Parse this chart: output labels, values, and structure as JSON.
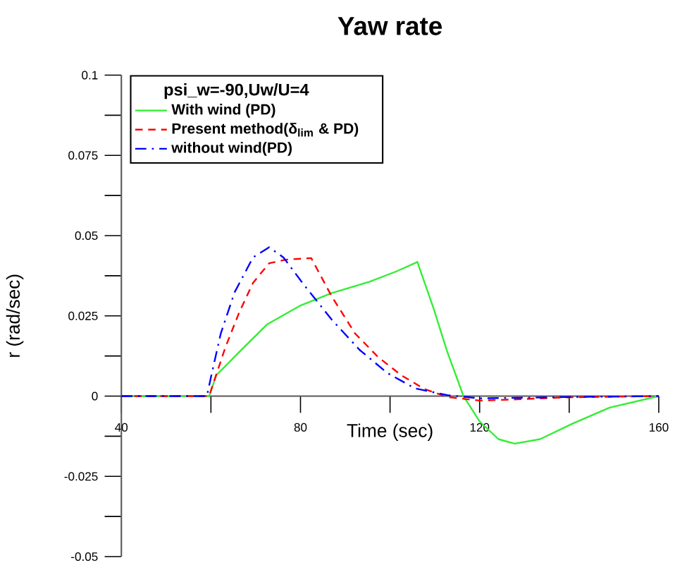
{
  "chart_data": {
    "type": "line",
    "title": "Yaw rate",
    "xlabel": "Time (sec)",
    "ylabel": "r (rad/sec)",
    "legend_title": "psi_w=-90,Uw/U=4",
    "xlim": [
      40,
      160
    ],
    "ylim": [
      -0.05,
      0.1
    ],
    "xticks": [
      40,
      {
        "value": 60,
        "label": null
      },
      80,
      {
        "value": 100,
        "label": null
      },
      120,
      {
        "value": 140,
        "label": null
      },
      160
    ],
    "yticks": [
      -0.05,
      {
        "value": -0.0375,
        "label": null
      },
      -0.025,
      {
        "value": -0.0125,
        "label": null
      },
      0,
      {
        "value": 0.0125,
        "label": null
      },
      0.025,
      {
        "value": 0.0375,
        "label": null
      },
      0.05,
      {
        "value": 0.0625,
        "label": null
      },
      0.075,
      {
        "value": 0.0875,
        "label": null
      },
      0.1
    ],
    "grid": false,
    "legend": "top left",
    "marker": "none",
    "series": [
      {
        "name": "With wind (PD)",
        "color": "#33ee33",
        "line_style": "solid",
        "x": [
          40,
          59.6,
          61.2,
          66.3,
          72.5,
          79.8,
          87,
          95.3,
          101.5,
          106.1,
          109.7,
          112.8,
          116.4,
          120,
          124.2,
          127.8,
          133.5,
          140.7,
          149,
          160
        ],
        "values": [
          0,
          0,
          0.0065,
          0.0137,
          0.0223,
          0.0281,
          0.0321,
          0.0356,
          0.0389,
          0.0418,
          0.0274,
          0.0137,
          0,
          -0.0079,
          -0.0134,
          -0.0148,
          -0.0134,
          -0.0086,
          -0.0036,
          0
        ]
      },
      {
        "name": "Present method(δ$_{lim}$ & PD)",
        "color": "#ff0000",
        "line_style": "dashed",
        "x": [
          40,
          59.6,
          63.2,
          66.3,
          69.4,
          73,
          76.7,
          82.4,
          87,
          92.2,
          97.3,
          102.5,
          107.7,
          112.8,
          120,
          128.3,
          138.7,
          160
        ],
        "values": [
          0,
          0,
          0.0151,
          0.026,
          0.0353,
          0.0414,
          0.0425,
          0.043,
          0.031,
          0.0195,
          0.0122,
          0.0065,
          0.0022,
          -0.0003,
          -0.0014,
          -0.001,
          -0.0004,
          0
        ]
      },
      {
        "name": "without wind(PD)",
        "color": "#0000ff",
        "line_style": "dashdot",
        "x": [
          40,
          59.1,
          60.1,
          62.2,
          65.3,
          69.4,
          73,
          76.2,
          80.8,
          87,
          93.2,
          99.4,
          105.6,
          112.8,
          120,
          138.7,
          160
        ],
        "values": [
          0,
          0,
          0.0065,
          0.0195,
          0.0324,
          0.0432,
          0.0464,
          0.0432,
          0.0346,
          0.0238,
          0.0144,
          0.0072,
          0.0024,
          0.0003,
          -0.0007,
          -0.0003,
          0
        ]
      }
    ]
  }
}
